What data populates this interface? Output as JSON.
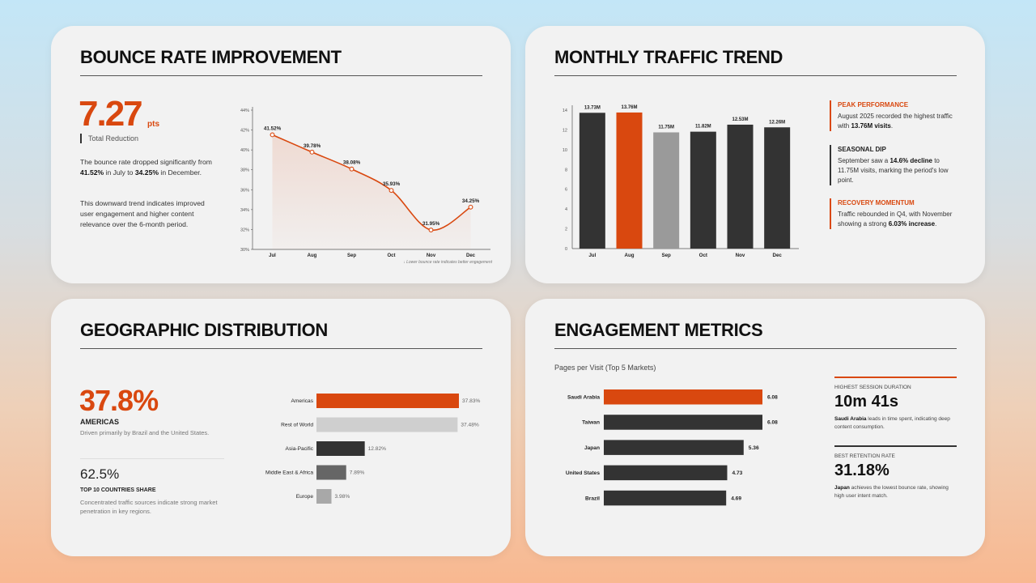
{
  "colors": {
    "accent": "#d9480f",
    "dark": "#333333",
    "mid_gray": "#9a9a9a",
    "light_gray": "#cfcfcf",
    "gray_bar": "#666666"
  },
  "bounce": {
    "title": "BOUNCE RATE IMPROVEMENT",
    "big_value": "7.27",
    "big_unit": "pts",
    "big_label": "Total Reduction",
    "p1_pre": "The bounce rate dropped significantly from ",
    "p1_b1": "41.52%",
    "p1_mid": " in July to ",
    "p1_b2": "34.25%",
    "p1_post": " in December.",
    "p2": "This downward trend indicates improved user engagement and higher content relevance over the 6-month period."
  },
  "traffic": {
    "title": "MONTHLY TRAFFIC TREND",
    "notes": [
      {
        "title": "PEAK PERFORMANCE",
        "pre": "August 2025 recorded the highest traffic with ",
        "bold": "13.76M visits",
        "post": "."
      },
      {
        "title": "SEASONAL DIP",
        "pre": "September saw a ",
        "bold": "14.6% decline",
        "post": " to 11.75M visits, marking the period's low point."
      },
      {
        "title": "RECOVERY MOMENTUM",
        "pre": "Traffic rebounded in Q4, with November showing a strong ",
        "bold": "6.03% increase",
        "post": "."
      }
    ]
  },
  "geo": {
    "title": "GEOGRAPHIC DISTRIBUTION",
    "big_value": "37.8%",
    "big_label": "AMERICAS",
    "big_desc": "Driven primarily by Brazil and the United States.",
    "second_value": "62.5%",
    "second_label": "TOP 10 COUNTRIES SHARE",
    "second_desc": "Concentrated traffic sources indicate strong market penetration in key regions."
  },
  "engage": {
    "title": "ENGAGEMENT METRICS",
    "subtitle": "Pages per Visit (Top 5 Markets)",
    "m1_label": "HIGHEST SESSION DURATION",
    "m1_value": "10m 41s",
    "m1_bold": "Saudi Arabia",
    "m1_desc": " leads in time spent, indicating deep content consumption.",
    "m2_label": "BEST RETENTION RATE",
    "m2_value": "31.18%",
    "m2_bold": "Japan",
    "m2_desc": " achieves the lowest bounce rate, showing high user intent match."
  },
  "chart_data": [
    {
      "type": "area",
      "categories": [
        "Jul",
        "Aug",
        "Sep",
        "Oct",
        "Nov",
        "Dec"
      ],
      "values": [
        41.52,
        39.78,
        38.08,
        35.93,
        31.95,
        34.25
      ],
      "data_labels": [
        "41.52%",
        "39.78%",
        "38.08%",
        "35.93%",
        "31.95%",
        "34.25%"
      ],
      "ylim": [
        30,
        44
      ],
      "yticks": [
        "30%",
        "32%",
        "34%",
        "36%",
        "38%",
        "40%",
        "42%",
        "44%"
      ],
      "annotation": "↓ Lower bounce rate indicates better engagement"
    },
    {
      "type": "bar",
      "categories": [
        "Jul",
        "Aug",
        "Sep",
        "Oct",
        "Nov",
        "Dec"
      ],
      "values": [
        13.73,
        13.76,
        11.75,
        11.82,
        12.53,
        12.26
      ],
      "data_labels": [
        "13.73M",
        "13.76M",
        "11.75M",
        "11.82M",
        "12.53M",
        "12.26M"
      ],
      "ylim": [
        0,
        14
      ],
      "yticks": [
        "0",
        "2",
        "4",
        "6",
        "8",
        "10",
        "12",
        "14"
      ],
      "colors": [
        "#333333",
        "#d9480f",
        "#9a9a9a",
        "#333333",
        "#333333",
        "#333333"
      ]
    },
    {
      "type": "bar",
      "orientation": "horizontal",
      "categories": [
        "Americas",
        "Rest of World",
        "Asia-Pacific",
        "Middle East & Africa",
        "Europe"
      ],
      "values": [
        37.83,
        37.48,
        12.82,
        7.89,
        3.98
      ],
      "data_labels": [
        "37.83%",
        "37.48%",
        "12.82%",
        "7.89%",
        "3.98%"
      ],
      "colors": [
        "#d9480f",
        "#cfcfcf",
        "#333333",
        "#666666",
        "#a8a8a8"
      ]
    },
    {
      "type": "bar",
      "orientation": "horizontal",
      "categories": [
        "Saudi Arabia",
        "Taiwan",
        "Japan",
        "United States",
        "Brazil"
      ],
      "values": [
        6.08,
        6.08,
        5.36,
        4.73,
        4.69
      ],
      "data_labels": [
        "6.08",
        "6.08",
        "5.36",
        "4.73",
        "4.69"
      ],
      "colors": [
        "#d9480f",
        "#333333",
        "#333333",
        "#333333",
        "#333333"
      ]
    }
  ]
}
